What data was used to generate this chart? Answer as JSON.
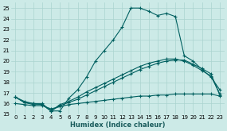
{
  "xlabel": "Humidex (Indice chaleur)",
  "bg_color": "#cceae7",
  "grid_color": "#aad4d0",
  "line_color": "#006060",
  "xlim": [
    -0.5,
    23.5
  ],
  "ylim": [
    15,
    25.5
  ],
  "yticks": [
    15,
    16,
    17,
    18,
    19,
    20,
    21,
    22,
    23,
    24,
    25
  ],
  "xticks": [
    0,
    1,
    2,
    3,
    4,
    5,
    6,
    7,
    8,
    9,
    10,
    11,
    12,
    13,
    14,
    15,
    16,
    17,
    18,
    19,
    20,
    21,
    22,
    23
  ],
  "series": [
    [
      16.6,
      16.1,
      16.0,
      15.9,
      15.3,
      15.3,
      16.5,
      17.3,
      18.5,
      20.0,
      21.0,
      22.0,
      23.2,
      25.0,
      25.0,
      24.7,
      24.3,
      24.5,
      24.2,
      20.5,
      20.0,
      19.2,
      18.5,
      17.3
    ],
    [
      16.6,
      16.1,
      15.9,
      15.9,
      15.3,
      15.8,
      16.1,
      16.4,
      16.8,
      17.2,
      17.6,
      18.0,
      18.4,
      18.8,
      19.2,
      19.5,
      19.8,
      20.0,
      20.1,
      20.1,
      19.7,
      19.3,
      18.8,
      16.8
    ],
    [
      16.6,
      16.2,
      16.0,
      16.0,
      15.3,
      15.9,
      16.2,
      16.6,
      17.1,
      17.5,
      17.9,
      18.3,
      18.7,
      19.1,
      19.5,
      19.8,
      20.0,
      20.2,
      20.2,
      20.0,
      19.6,
      19.1,
      18.6,
      16.9
    ],
    [
      16.0,
      15.9,
      15.8,
      15.8,
      15.5,
      15.7,
      15.9,
      16.0,
      16.1,
      16.2,
      16.3,
      16.4,
      16.5,
      16.6,
      16.7,
      16.7,
      16.8,
      16.8,
      16.9,
      16.9,
      16.9,
      16.9,
      16.9,
      16.7
    ]
  ],
  "marker": "+",
  "markersize": 3,
  "linewidth": 0.8,
  "tick_fontsize": 5,
  "xlabel_fontsize": 6
}
